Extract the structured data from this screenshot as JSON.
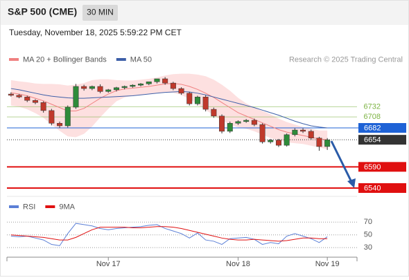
{
  "header": {
    "title": "S&P 500 (CME)",
    "interval": "30 MIN",
    "datetime": "Tuesday, November 18, 2025 5:59:22 PM CET"
  },
  "chart_data": [
    {
      "type": "candlestick",
      "legend": [
        {
          "name": "MA 20 + Bollinger Bands",
          "color": "#f08080"
        },
        {
          "name": "MA 50",
          "color": "#3d5fa8"
        }
      ],
      "credit": "Research © 2025 Trading Central",
      "categories": [
        null,
        null,
        null,
        null,
        null,
        null,
        null,
        null,
        null,
        null,
        null,
        null,
        "Nov 17",
        null,
        null,
        null,
        null,
        null,
        null,
        null,
        null,
        null,
        null,
        null,
        null,
        null,
        null,
        null,
        "Nov 18",
        null,
        null,
        null,
        null,
        null,
        null,
        null,
        null,
        null,
        null,
        "Nov 19"
      ],
      "open": [
        6762,
        6759,
        6755,
        6747,
        6742,
        6723,
        6693,
        6687,
        6731,
        6780,
        6775,
        6780,
        6768,
        6772,
        6777,
        6780,
        6783,
        6786,
        6791,
        6798,
        6788,
        6775,
        6764,
        6739,
        6755,
        6726,
        6710,
        6674,
        6693,
        6697,
        6700,
        6690,
        6649,
        6653,
        6641,
        6666,
        6677,
        6674,
        6658,
        6638
      ],
      "high": [
        6766,
        6762,
        6758,
        6750,
        6745,
        6727,
        6697,
        6735,
        6786,
        6784,
        6782,
        6785,
        6774,
        6779,
        6782,
        6785,
        6788,
        6791,
        6797,
        6802,
        6791,
        6778,
        6767,
        6758,
        6759,
        6730,
        6714,
        6697,
        6700,
        6703,
        6704,
        6693,
        6656,
        6656,
        6669,
        6681,
        6681,
        6678,
        6661,
        6658
      ],
      "low": [
        6756,
        6752,
        6743,
        6738,
        6718,
        6688,
        6682,
        6683,
        6727,
        6770,
        6771,
        6764,
        6765,
        6768,
        6773,
        6777,
        6780,
        6783,
        6787,
        6784,
        6771,
        6760,
        6735,
        6735,
        6721,
        6706,
        6669,
        6670,
        6689,
        6694,
        6686,
        6645,
        6645,
        6637,
        6638,
        6662,
        6670,
        6654,
        6628,
        6630
      ],
      "close": [
        6759,
        6755,
        6747,
        6742,
        6723,
        6693,
        6687,
        6731,
        6780,
        6775,
        6780,
        6768,
        6772,
        6777,
        6780,
        6783,
        6786,
        6791,
        6798,
        6788,
        6775,
        6764,
        6739,
        6755,
        6726,
        6710,
        6674,
        6693,
        6697,
        6700,
        6690,
        6649,
        6653,
        6641,
        6666,
        6677,
        6674,
        6658,
        6638,
        6654
      ],
      "up_color": "#2e8b3a",
      "down_color": "#c0392b",
      "ma20": [
        6765,
        6762,
        6758,
        6752,
        6746,
        6738,
        6730,
        6722,
        6722,
        6728,
        6740,
        6752,
        6762,
        6770,
        6774,
        6776,
        6778,
        6780,
        6783,
        6786,
        6787,
        6785,
        6780,
        6773,
        6764,
        6754,
        6742,
        6730,
        6718,
        6710,
        6702,
        6694,
        6686,
        6678,
        6672,
        6668,
        6664,
        6660,
        6656,
        6654
      ],
      "ma50": [
        6775,
        6772,
        6768,
        6764,
        6760,
        6757,
        6755,
        6753,
        6752,
        6752,
        6753,
        6754,
        6755,
        6756,
        6757,
        6758,
        6760,
        6762,
        6764,
        6766,
        6767,
        6768,
        6767,
        6764,
        6760,
        6755,
        6750,
        6745,
        6740,
        6735,
        6730,
        6724,
        6718,
        6712,
        6705,
        6698,
        6692,
        6687,
        6684,
        6682
      ],
      "band_upper": [
        6795,
        6792,
        6790,
        6787,
        6786,
        6786,
        6785,
        6782,
        6784,
        6788,
        6795,
        6797,
        6797,
        6795,
        6794,
        6794,
        6796,
        6798,
        6801,
        6806,
        6809,
        6810,
        6810,
        6808,
        6804,
        6796,
        6784,
        6770,
        6753,
        6740,
        6730,
        6722,
        6714,
        6704,
        6696,
        6690,
        6684,
        6680,
        6676,
        6676
      ],
      "band_lower": [
        6735,
        6732,
        6726,
        6717,
        6706,
        6690,
        6675,
        6662,
        6660,
        6668,
        6685,
        6707,
        6727,
        6745,
        6754,
        6758,
        6760,
        6762,
        6765,
        6766,
        6765,
        6760,
        6750,
        6738,
        6724,
        6712,
        6700,
        6690,
        6683,
        6680,
        6674,
        6666,
        6658,
        6652,
        6648,
        6646,
        6644,
        6640,
        6636,
        6632
      ],
      "band_color": "#fde0e0",
      "ylim": [
        6522,
        6829
      ],
      "levels": [
        {
          "value": 6732,
          "color": "#7cb342",
          "style": "text"
        },
        {
          "value": 6708,
          "color": "#7cb342",
          "style": "text"
        },
        {
          "value": 6682,
          "color": "#1e62d6",
          "style": "box"
        },
        {
          "value": 6654,
          "color": "#333333",
          "style": "dotted"
        },
        {
          "value": 6590,
          "color": "#e01010",
          "style": "box"
        },
        {
          "value": 6540,
          "color": "#e01010",
          "style": "box"
        }
      ]
    },
    {
      "type": "line",
      "series": [
        {
          "name": "RSI",
          "color": "#5b7fd6",
          "values": [
            48,
            47,
            48,
            45,
            42,
            35,
            33,
            52,
            68,
            66,
            64,
            60,
            58,
            60,
            61,
            62,
            63,
            65,
            66,
            60,
            56,
            52,
            45,
            53,
            42,
            40,
            35,
            44,
            45,
            46,
            43,
            35,
            38,
            36,
            48,
            52,
            48,
            44,
            38,
            47
          ]
        },
        {
          "name": "9MA",
          "color": "#e01010",
          "values": [
            50,
            49,
            48,
            47,
            46,
            44,
            42,
            42,
            46,
            52,
            58,
            62,
            62,
            62,
            62,
            61,
            61,
            62,
            63,
            63,
            62,
            60,
            57,
            54,
            51,
            48,
            45,
            43,
            42,
            42,
            43,
            42,
            41,
            40,
            41,
            43,
            45,
            45,
            44,
            44
          ]
        }
      ],
      "ylim": [
        15,
        80
      ],
      "yticks": [
        70,
        50,
        30
      ],
      "grid": true
    }
  ]
}
